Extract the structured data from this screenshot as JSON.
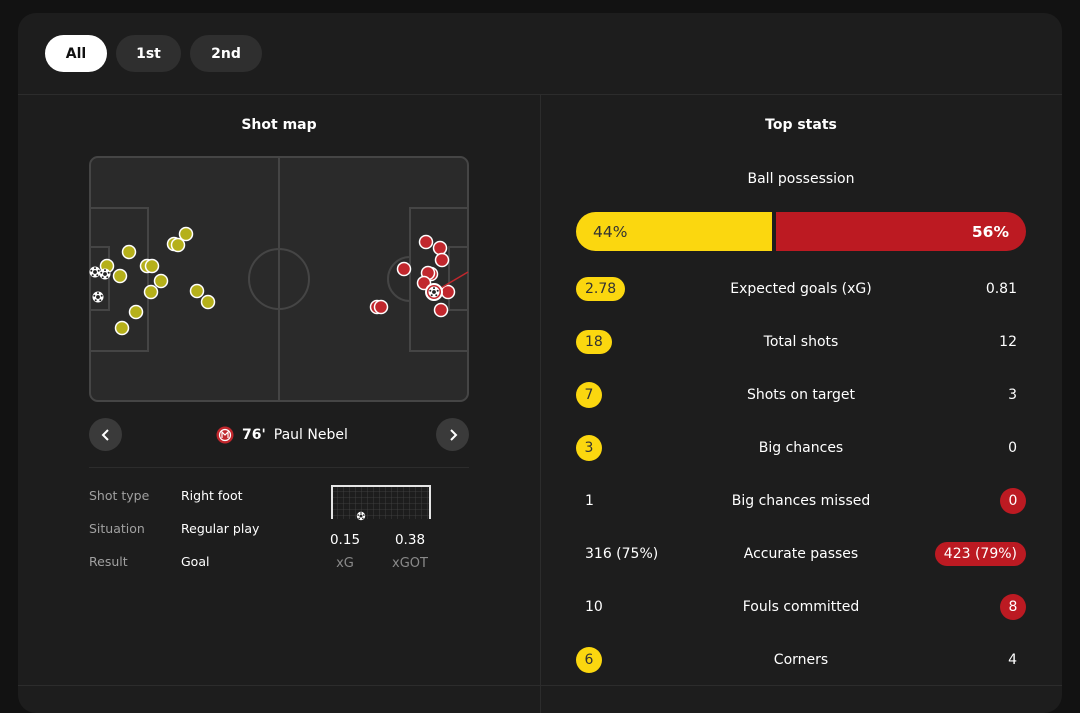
{
  "tabs": [
    {
      "label": "All",
      "active": true
    },
    {
      "label": "1st",
      "active": false
    },
    {
      "label": "2nd",
      "active": false
    }
  ],
  "shot_map": {
    "title": "Shot map",
    "home_color": "#c8c21a",
    "away_color": "#c1272d",
    "selected_shot": {
      "minute": "76'",
      "player": "Paul Nebel",
      "details": [
        {
          "label": "Shot type",
          "value": "Right foot"
        },
        {
          "label": "Situation",
          "value": "Regular play"
        },
        {
          "label": "Result",
          "value": "Goal"
        }
      ],
      "xg": {
        "value": "0.15",
        "label": "xG"
      },
      "xgot": {
        "value": "0.38",
        "label": "xGOT"
      }
    }
  },
  "top_stats": {
    "title": "Top stats",
    "possession": {
      "label": "Ball possession",
      "home": "44%",
      "away": "56%",
      "home_fraction": 0.44,
      "home_color": "#fbd70f",
      "away_color": "#bc1a22"
    },
    "rows": [
      {
        "label": "Expected goals (xG)",
        "home": "2.78",
        "away": "0.81",
        "home_style": "pill",
        "away_style": "plain"
      },
      {
        "label": "Total shots",
        "home": "18",
        "away": "12",
        "home_style": "pill",
        "away_style": "plain"
      },
      {
        "label": "Shots on target",
        "home": "7",
        "away": "3",
        "home_style": "circle",
        "away_style": "plain"
      },
      {
        "label": "Big chances",
        "home": "3",
        "away": "0",
        "home_style": "circle",
        "away_style": "plain"
      },
      {
        "label": "Big chances missed",
        "home": "1",
        "away": "0",
        "home_style": "plain",
        "away_style": "circle"
      },
      {
        "label": "Accurate passes",
        "home": "316 (75%)",
        "away": "423 (79%)",
        "home_style": "plain",
        "away_style": "pill"
      },
      {
        "label": "Fouls committed",
        "home": "10",
        "away": "8",
        "home_style": "plain",
        "away_style": "circle"
      },
      {
        "label": "Corners",
        "home": "6",
        "away": "4",
        "home_style": "circle",
        "away_style": "plain"
      }
    ]
  }
}
